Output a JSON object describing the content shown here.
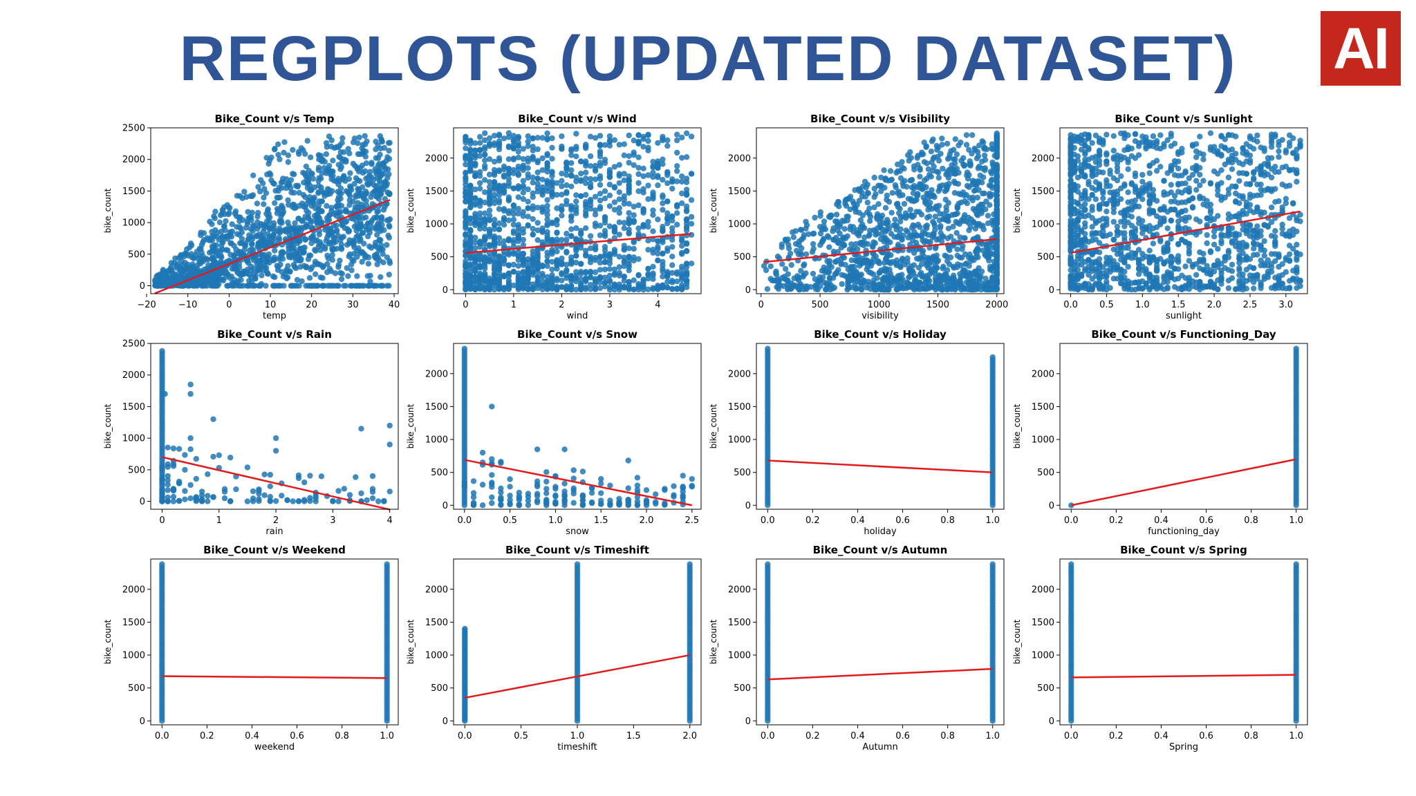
{
  "header": {
    "title": "REGPLOTS (UPDATED DATASET)",
    "logo_text": "AI"
  },
  "colors": {
    "title": "#2f5597",
    "logo_bg": "#c4281d",
    "points": "#1f77b4",
    "regression": "#e31a1c"
  },
  "chart_data": [
    {
      "type": "scatter",
      "title": "Bike_Count v/s Temp",
      "xlabel": "temp",
      "ylabel": "bike_count",
      "xlim": [
        -19,
        41
      ],
      "ylim": [
        -125,
        2500
      ],
      "xticks": [
        -20,
        -10,
        0,
        10,
        20,
        30,
        40
      ],
      "yticks": [
        0,
        500,
        1000,
        1500,
        2000,
        2500
      ],
      "points": "temp",
      "regression": [
        [
          -18,
          -120
        ],
        [
          39,
          1360
        ]
      ]
    },
    {
      "type": "scatter",
      "title": "Bike_Count v/s Wind",
      "xlabel": "wind",
      "ylabel": "bike_count",
      "xlim": [
        -0.25,
        4.9
      ],
      "ylim": [
        -60,
        2460
      ],
      "xticks": [
        0,
        1,
        2,
        3,
        4
      ],
      "yticks": [
        0,
        500,
        1000,
        1500,
        2000
      ],
      "points": "wind",
      "regression": [
        [
          0,
          560
        ],
        [
          4.7,
          850
        ]
      ]
    },
    {
      "type": "scatter",
      "title": "Bike_Count v/s Visibility",
      "xlabel": "visibility",
      "ylabel": "bike_count",
      "xlim": [
        -40,
        2060
      ],
      "ylim": [
        -60,
        2460
      ],
      "xticks": [
        0,
        500,
        1000,
        1500,
        2000
      ],
      "yticks": [
        0,
        500,
        1000,
        1500,
        2000
      ],
      "points": "visibility",
      "regression": [
        [
          20,
          420
        ],
        [
          2000,
          770
        ]
      ]
    },
    {
      "type": "scatter",
      "title": "Bike_Count v/s Sunlight",
      "xlabel": "sunlight",
      "ylabel": "bike_count",
      "xlim": [
        -0.15,
        3.3
      ],
      "ylim": [
        -60,
        2460
      ],
      "xticks": [
        0,
        0.5,
        1,
        1.5,
        2,
        2.5,
        3
      ],
      "xtick_labels": [
        "0.0",
        "0.5",
        "1.0",
        "1.5",
        "2.0",
        "2.5",
        "3.0"
      ],
      "yticks": [
        0,
        500,
        1000,
        1500,
        2000
      ],
      "points": "sunlight",
      "regression": [
        [
          0,
          560
        ],
        [
          3.2,
          1190
        ]
      ]
    },
    {
      "type": "scatter",
      "title": "Bike_Count v/s Rain",
      "xlabel": "rain",
      "ylabel": "bike_count",
      "xlim": [
        -0.2,
        4.15
      ],
      "ylim": [
        -125,
        2500
      ],
      "xticks": [
        0,
        1,
        2,
        3,
        4
      ],
      "yticks": [
        0,
        500,
        1000,
        1500,
        2000,
        2500
      ],
      "points": "rain",
      "regression": [
        [
          0,
          700
        ],
        [
          4,
          -130
        ]
      ]
    },
    {
      "type": "scatter",
      "title": "Bike_Count v/s Snow",
      "xlabel": "snow",
      "ylabel": "bike_count",
      "xlim": [
        -0.12,
        2.6
      ],
      "ylim": [
        -60,
        2460
      ],
      "xticks": [
        0,
        0.5,
        1,
        1.5,
        2,
        2.5
      ],
      "xtick_labels": [
        "0.0",
        "0.5",
        "1.0",
        "1.5",
        "2.0",
        "2.5"
      ],
      "yticks": [
        0,
        500,
        1000,
        1500,
        2000
      ],
      "points": "snow",
      "regression": [
        [
          0,
          690
        ],
        [
          2.5,
          0
        ]
      ]
    },
    {
      "type": "scatter",
      "title": "Bike_Count v/s Holiday",
      "xlabel": "holiday",
      "ylabel": "bike_count",
      "xlim": [
        -0.05,
        1.05
      ],
      "ylim": [
        -60,
        2460
      ],
      "xticks": [
        0,
        0.2,
        0.4,
        0.6,
        0.8,
        1
      ],
      "xtick_labels": [
        "0.0",
        "0.2",
        "0.4",
        "0.6",
        "0.8",
        "1.0"
      ],
      "yticks": [
        0,
        500,
        1000,
        1500,
        2000
      ],
      "points": "binary",
      "max0": 2380,
      "max1": 2250,
      "regression": [
        [
          0,
          680
        ],
        [
          1,
          500
        ]
      ]
    },
    {
      "type": "scatter",
      "title": "Bike_Count v/s Functioning_Day",
      "xlabel": "functioning_day",
      "ylabel": "bike_count",
      "xlim": [
        -0.05,
        1.05
      ],
      "ylim": [
        -60,
        2460
      ],
      "xticks": [
        0,
        0.2,
        0.4,
        0.6,
        0.8,
        1
      ],
      "xtick_labels": [
        "0.0",
        "0.2",
        "0.4",
        "0.6",
        "0.8",
        "1.0"
      ],
      "yticks": [
        0,
        500,
        1000,
        1500,
        2000
      ],
      "points": "binary",
      "max0": 0,
      "max1": 2380,
      "regression": [
        [
          0,
          0
        ],
        [
          1,
          700
        ]
      ]
    },
    {
      "type": "scatter",
      "title": "Bike_Count v/s Weekend",
      "xlabel": "weekend",
      "ylabel": "bike_count",
      "xlim": [
        -0.05,
        1.05
      ],
      "ylim": [
        -60,
        2460
      ],
      "xticks": [
        0,
        0.2,
        0.4,
        0.6,
        0.8,
        1
      ],
      "xtick_labels": [
        "0.0",
        "0.2",
        "0.4",
        "0.6",
        "0.8",
        "1.0"
      ],
      "yticks": [
        0,
        500,
        1000,
        1500,
        2000
      ],
      "points": "binary",
      "max0": 2380,
      "max1": 2380,
      "regression": [
        [
          0,
          680
        ],
        [
          1,
          650
        ]
      ]
    },
    {
      "type": "scatter",
      "title": "Bike_Count v/s Timeshift",
      "xlabel": "timeshift",
      "ylabel": "bike_count",
      "xlim": [
        -0.1,
        2.1
      ],
      "ylim": [
        -60,
        2460
      ],
      "xticks": [
        0,
        0.5,
        1,
        1.5,
        2
      ],
      "xtick_labels": [
        "0.0",
        "0.5",
        "1.0",
        "1.5",
        "2.0"
      ],
      "yticks": [
        0,
        500,
        1000,
        1500,
        2000
      ],
      "points": "ternary",
      "max": [
        1400,
        2380,
        2380
      ],
      "regression": [
        [
          0,
          350
        ],
        [
          2,
          1000
        ]
      ]
    },
    {
      "type": "scatter",
      "title": "Bike_Count v/s Autumn",
      "xlabel": "Autumn",
      "ylabel": "bike_count",
      "xlim": [
        -0.05,
        1.05
      ],
      "ylim": [
        -60,
        2460
      ],
      "xticks": [
        0,
        0.2,
        0.4,
        0.6,
        0.8,
        1
      ],
      "xtick_labels": [
        "0.0",
        "0.2",
        "0.4",
        "0.6",
        "0.8",
        "1.0"
      ],
      "yticks": [
        0,
        500,
        1000,
        1500,
        2000
      ],
      "points": "binary",
      "max0": 2380,
      "max1": 2380,
      "regression": [
        [
          0,
          630
        ],
        [
          1,
          790
        ]
      ]
    },
    {
      "type": "scatter",
      "title": "Bike_Count v/s Spring",
      "xlabel": "Spring",
      "ylabel": "bike_count",
      "xlim": [
        -0.05,
        1.05
      ],
      "ylim": [
        -60,
        2460
      ],
      "xticks": [
        0,
        0.2,
        0.4,
        0.6,
        0.8,
        1
      ],
      "xtick_labels": [
        "0.0",
        "0.2",
        "0.4",
        "0.6",
        "0.8",
        "1.0"
      ],
      "yticks": [
        0,
        500,
        1000,
        1500,
        2000
      ],
      "points": "binary",
      "max0": 2380,
      "max1": 2380,
      "regression": [
        [
          0,
          660
        ],
        [
          1,
          700
        ]
      ]
    }
  ]
}
